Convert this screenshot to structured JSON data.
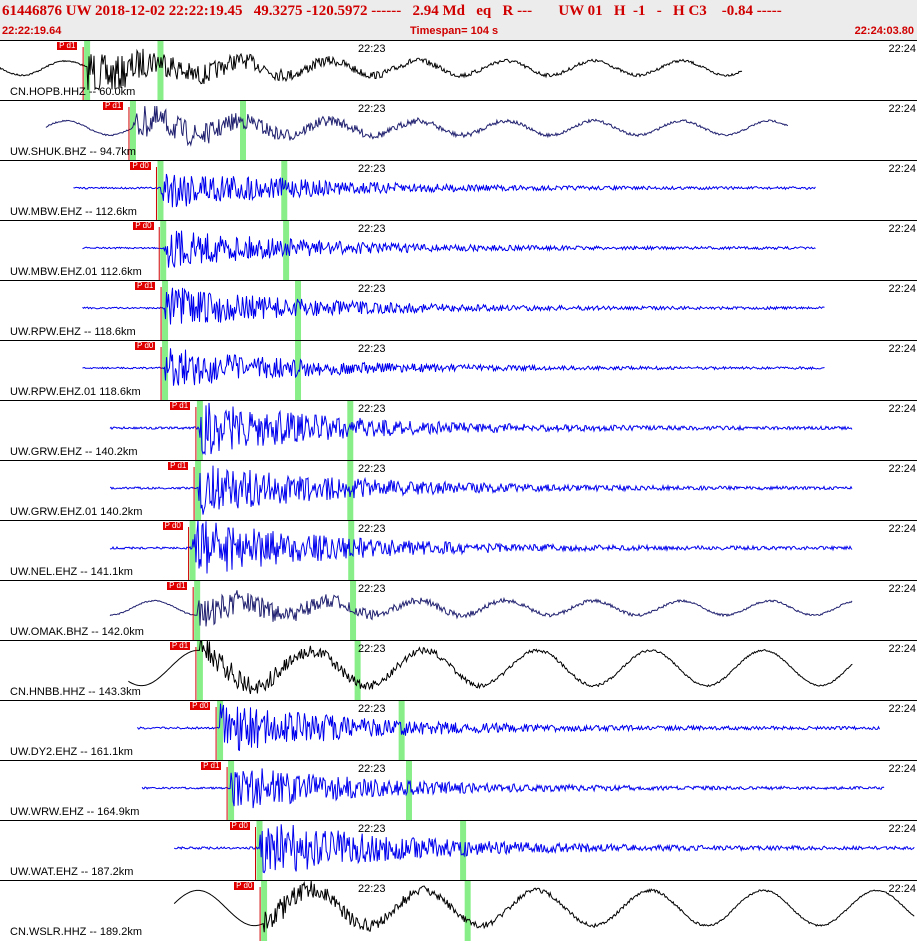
{
  "header": {
    "event_line": "61446876 UW 2018-12-02 22:22:19.45   49.3275 -120.5972 ------   2.94 Md   eq   R ---       UW 01   H  -1   -   H C3    -0.84 -----",
    "start_time": "22:22:19.64",
    "timespan": "Timespan= 104 s",
    "end_time": "22:24:03.80"
  },
  "colors": {
    "accent": "#d00000",
    "blue": "#0000ee",
    "black": "#000000",
    "navy": "#202070",
    "phase_green": "#88ee88"
  },
  "panels": [
    {
      "label": "CN.HOPB.HHZ -- 60.0km",
      "time_mid": "22:23",
      "time_right": "22:24",
      "pick_text": "P d1",
      "color": "#000000",
      "ptime": 0.095,
      "stime": 0.175,
      "amp": 0.35,
      "wave": "mixed",
      "start": 0.0,
      "end": 0.81
    },
    {
      "label": "UW.SHUK.BHZ -- 94.7km",
      "time_mid": "22:23",
      "time_right": "22:24",
      "pick_text": "P d1",
      "color": "#202070",
      "ptime": 0.145,
      "stime": 0.265,
      "amp": 0.28,
      "wave": "mixed",
      "start": 0.05,
      "end": 0.86
    },
    {
      "label": "UW.MBW.EHZ -- 112.6km",
      "time_mid": "22:23",
      "time_right": "22:24",
      "pick_text": "P d0",
      "color": "#0000ee",
      "ptime": 0.175,
      "stime": 0.31,
      "amp": 0.3,
      "wave": "hf",
      "start": 0.08,
      "end": 0.89
    },
    {
      "label": "UW.MBW.EHZ.01 112.6km",
      "time_mid": "22:23",
      "time_right": "22:24",
      "pick_text": "P d0",
      "color": "#0000ee",
      "ptime": 0.178,
      "stime": 0.312,
      "amp": 0.28,
      "wave": "hf",
      "start": 0.09,
      "end": 0.89
    },
    {
      "label": "UW.RPW.EHZ -- 118.6km",
      "time_mid": "22:23",
      "time_right": "22:24",
      "pick_text": "P d1",
      "color": "#0000ee",
      "ptime": 0.18,
      "stime": 0.325,
      "amp": 0.3,
      "wave": "hf",
      "start": 0.09,
      "end": 0.9
    },
    {
      "label": "UW.RPW.EHZ.01 118.6km",
      "time_mid": "22:23",
      "time_right": "22:24",
      "pick_text": "P d0",
      "color": "#0000ee",
      "ptime": 0.18,
      "stime": 0.325,
      "amp": 0.28,
      "wave": "hf",
      "start": 0.09,
      "end": 0.9
    },
    {
      "label": "UW.GRW.EHZ -- 140.2km",
      "time_mid": "22:23",
      "time_right": "22:24",
      "pick_text": "P d1",
      "color": "#0000ee",
      "ptime": 0.218,
      "stime": 0.382,
      "amp": 0.38,
      "wave": "hf",
      "start": 0.12,
      "end": 0.93
    },
    {
      "label": "UW.GRW.EHZ.01 140.2km",
      "time_mid": "22:23",
      "time_right": "22:24",
      "pick_text": "P d1",
      "color": "#0000ee",
      "ptime": 0.216,
      "stime": 0.382,
      "amp": 0.38,
      "wave": "hf",
      "start": 0.12,
      "end": 0.93
    },
    {
      "label": "UW.NEL.EHZ -- 141.1km",
      "time_mid": "22:23",
      "time_right": "22:24",
      "pick_text": "P d0",
      "color": "#0000ee",
      "ptime": 0.21,
      "stime": 0.383,
      "amp": 0.4,
      "wave": "hf",
      "start": 0.12,
      "end": 0.93
    },
    {
      "label": "UW.OMAK.BHZ -- 142.0km",
      "time_mid": "22:23",
      "time_right": "22:24",
      "pick_text": "P d1",
      "color": "#202070",
      "ptime": 0.215,
      "stime": 0.385,
      "amp": 0.25,
      "wave": "mixed",
      "start": 0.12,
      "end": 0.93
    },
    {
      "label": "CN.HNBB.HHZ -- 143.3km",
      "time_mid": "22:23",
      "time_right": "22:24",
      "pick_text": "P d1",
      "color": "#000000",
      "ptime": 0.218,
      "stime": 0.39,
      "amp": 0.42,
      "wave": "lf",
      "start": 0.14,
      "end": 0.93
    },
    {
      "label": "UW.DY2.EHZ -- 161.1km",
      "time_mid": "22:23",
      "time_right": "22:24",
      "pick_text": "P d0",
      "color": "#0000ee",
      "ptime": 0.24,
      "stime": 0.438,
      "amp": 0.35,
      "wave": "hf",
      "start": 0.15,
      "end": 0.96
    },
    {
      "label": "UW.WRW.EHZ -- 164.9km",
      "time_mid": "22:23",
      "time_right": "22:24",
      "pick_text": "P d1",
      "color": "#0000ee",
      "ptime": 0.252,
      "stime": 0.446,
      "amp": 0.32,
      "wave": "hf",
      "start": 0.155,
      "end": 0.965
    },
    {
      "label": "UW.WAT.EHZ -- 187.2km",
      "time_mid": "22:23",
      "time_right": "22:24",
      "pick_text": "P d0",
      "color": "#0000ee",
      "ptime": 0.283,
      "stime": 0.505,
      "amp": 0.4,
      "wave": "hf",
      "start": 0.19,
      "end": 1.0
    },
    {
      "label": "CN.WSLR.HHZ -- 189.2km",
      "time_mid": "22:23",
      "time_right": "22:24",
      "pick_text": "P d0",
      "color": "#000000",
      "ptime": 0.288,
      "stime": 0.51,
      "amp": 0.42,
      "wave": "lf",
      "start": 0.19,
      "end": 1.0
    }
  ]
}
